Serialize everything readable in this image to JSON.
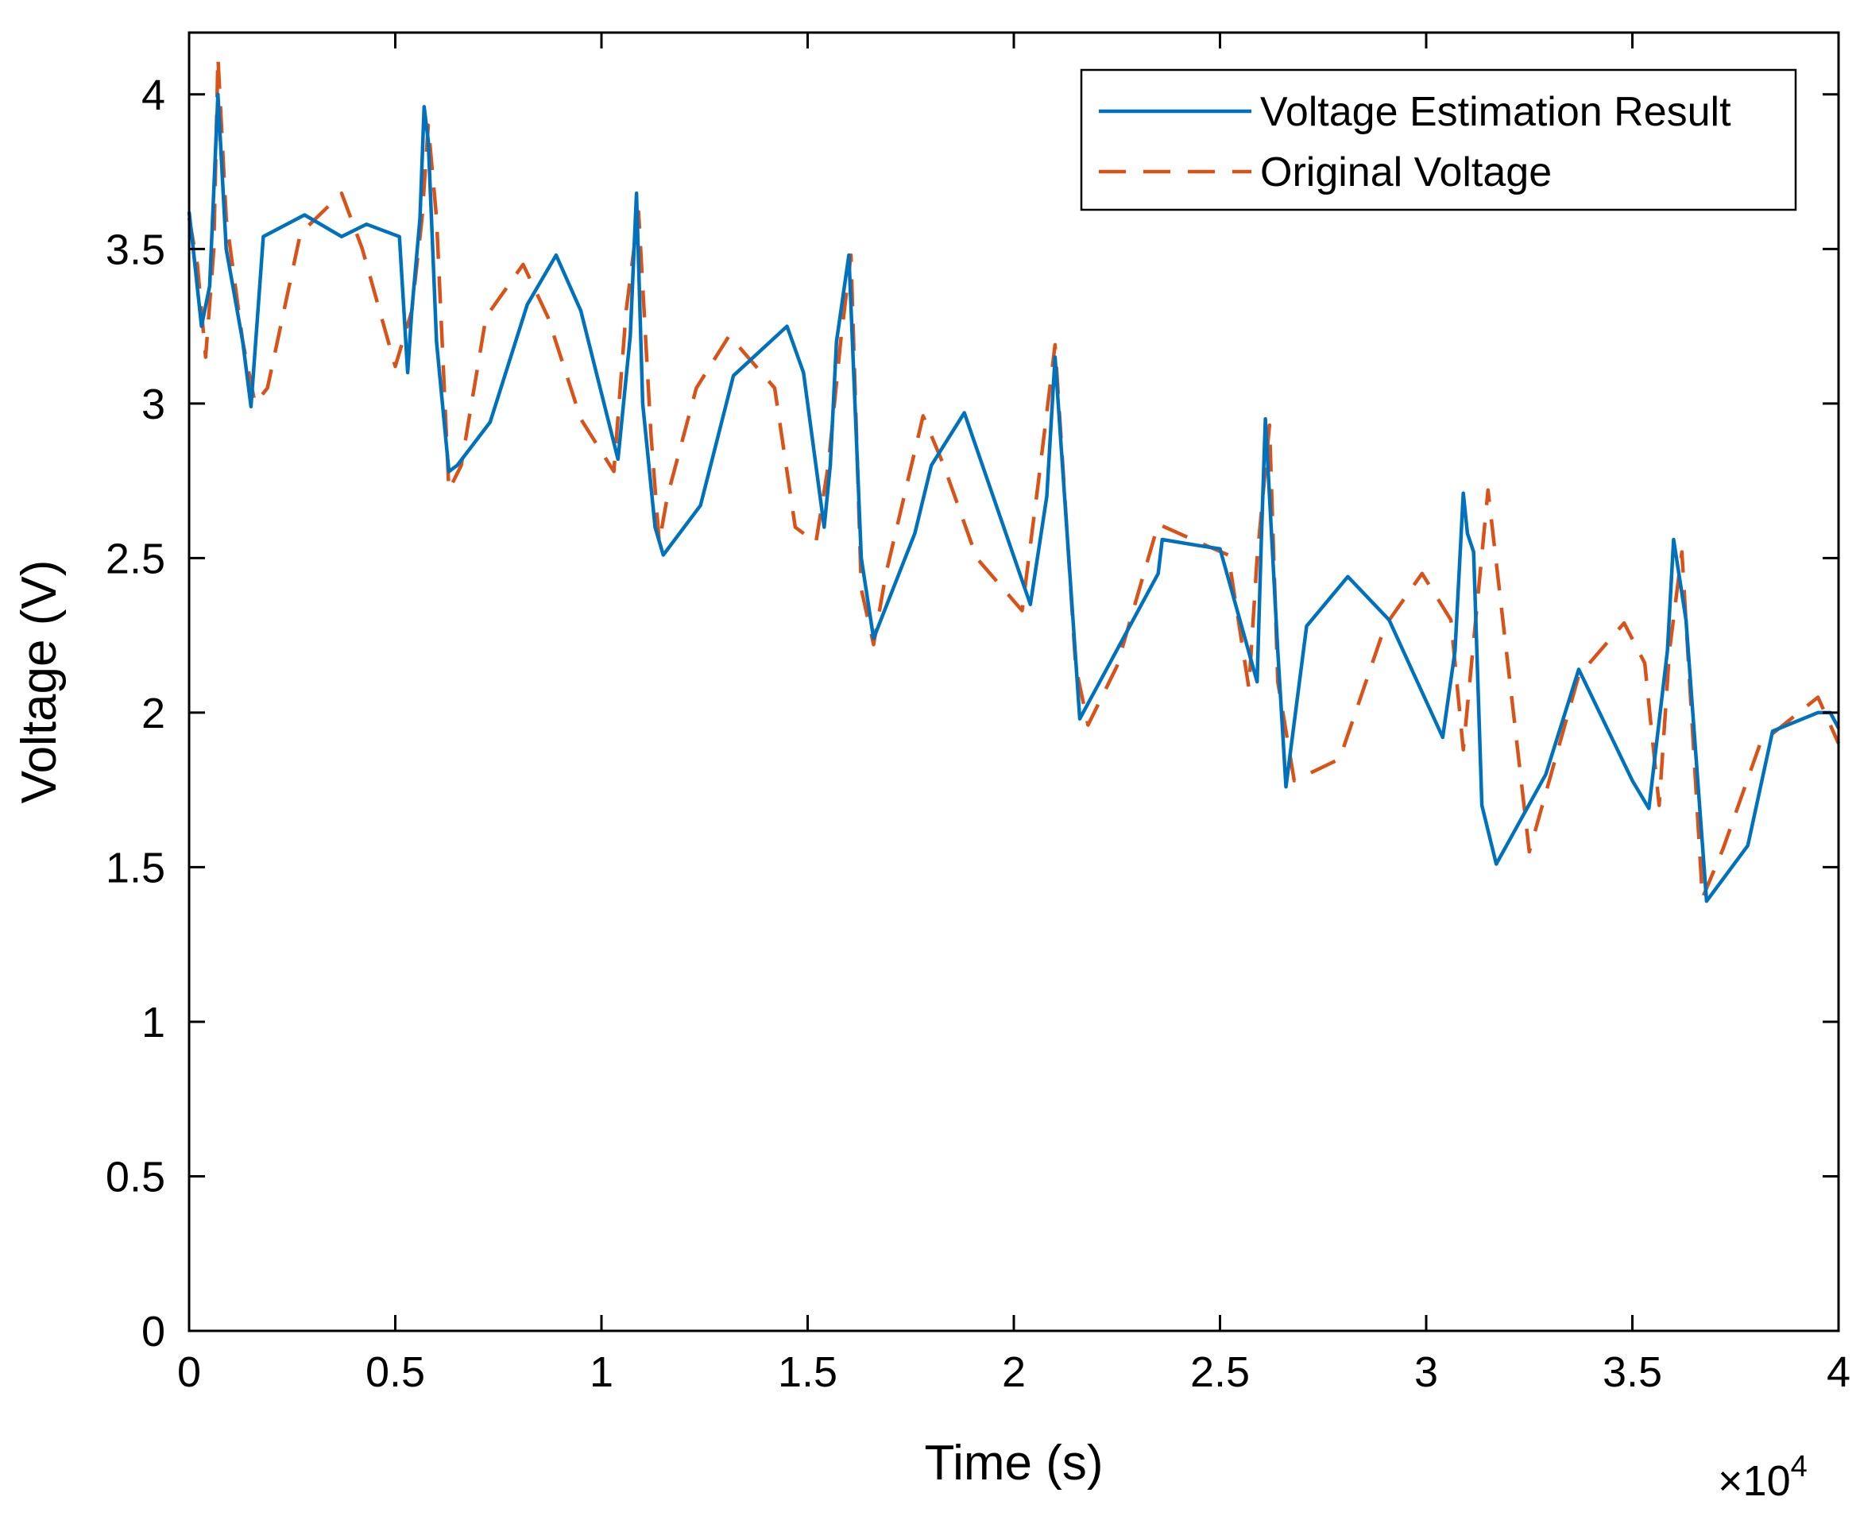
{
  "chart_data": {
    "type": "line",
    "title": "",
    "xlabel": "Time (s)",
    "ylabel": "Voltage (V)",
    "x_multiplier_label": "×10",
    "x_multiplier_exponent": "4",
    "xlim": [
      0,
      4
    ],
    "ylim": [
      0,
      4.2
    ],
    "xticks": [
      0,
      0.5,
      1,
      1.5,
      2,
      2.5,
      3,
      3.5,
      4
    ],
    "xtick_labels": [
      "0",
      "0.5",
      "1",
      "1.5",
      "2",
      "2.5",
      "3",
      "3.5",
      "4"
    ],
    "yticks": [
      0,
      0.5,
      1,
      1.5,
      2,
      2.5,
      3,
      3.5,
      4
    ],
    "ytick_labels": [
      "0",
      "0.5",
      "1",
      "1.5",
      "2",
      "2.5",
      "3",
      "3.5",
      "4"
    ],
    "grid": false,
    "legend_position": "top-right",
    "colors": {
      "estimation": "#0072BD",
      "original": "#D95319",
      "axes": "#000000",
      "background": "#ffffff"
    },
    "series": [
      {
        "name": "Voltage Estimation Result",
        "style": "solid",
        "x": [
          0.0,
          0.01,
          0.03,
          0.05,
          0.07,
          0.09,
          0.13,
          0.15,
          0.18,
          0.28,
          0.37,
          0.43,
          0.51,
          0.53,
          0.54,
          0.56,
          0.57,
          0.58,
          0.6,
          0.63,
          0.65,
          0.73,
          0.82,
          0.89,
          0.95,
          1.04,
          1.07,
          1.085,
          1.1,
          1.13,
          1.15,
          1.24,
          1.32,
          1.45,
          1.49,
          1.54,
          1.555,
          1.57,
          1.6,
          1.63,
          1.66,
          1.76,
          1.8,
          1.88,
          2.04,
          2.08,
          2.1,
          2.16,
          2.35,
          2.36,
          2.45,
          2.5,
          2.59,
          2.6,
          2.61,
          2.64,
          2.66,
          2.71,
          2.81,
          2.91,
          3.04,
          3.07,
          3.09,
          3.1,
          3.115,
          3.135,
          3.17,
          3.29,
          3.37,
          3.5,
          3.54,
          3.585,
          3.6,
          3.63,
          3.68,
          3.78,
          3.84,
          3.95,
          3.98,
          4.0
        ],
        "y": [
          3.62,
          3.5,
          3.25,
          3.38,
          4.0,
          3.5,
          3.2,
          2.99,
          3.54,
          3.61,
          3.54,
          3.58,
          3.54,
          3.1,
          3.3,
          3.6,
          3.96,
          3.85,
          3.2,
          2.78,
          2.8,
          2.94,
          3.32,
          3.48,
          3.3,
          2.82,
          3.22,
          3.68,
          3.0,
          2.6,
          2.51,
          2.67,
          3.09,
          3.25,
          3.1,
          2.6,
          2.8,
          3.2,
          3.48,
          2.5,
          2.24,
          2.58,
          2.8,
          2.97,
          2.35,
          2.7,
          3.15,
          1.98,
          2.45,
          2.56,
          2.54,
          2.53,
          2.1,
          2.55,
          2.95,
          2.2,
          1.76,
          2.28,
          2.44,
          2.3,
          1.92,
          2.2,
          2.71,
          2.58,
          2.52,
          1.7,
          1.51,
          1.8,
          2.14,
          1.78,
          1.69,
          2.2,
          2.56,
          2.3,
          1.39,
          1.57,
          1.94,
          2.0,
          2.0,
          1.95
        ]
      },
      {
        "name": "Original Voltage",
        "style": "dashed",
        "x": [
          0.0,
          0.02,
          0.04,
          0.06,
          0.07,
          0.09,
          0.13,
          0.16,
          0.19,
          0.27,
          0.37,
          0.42,
          0.5,
          0.54,
          0.565,
          0.58,
          0.6,
          0.63,
          0.66,
          0.72,
          0.81,
          0.87,
          0.95,
          1.03,
          1.06,
          1.09,
          1.12,
          1.14,
          1.16,
          1.23,
          1.31,
          1.42,
          1.47,
          1.52,
          1.55,
          1.58,
          1.605,
          1.63,
          1.66,
          1.69,
          1.78,
          1.83,
          1.91,
          2.02,
          2.06,
          2.1,
          2.15,
          2.18,
          2.25,
          2.35,
          2.45,
          2.52,
          2.57,
          2.59,
          2.62,
          2.64,
          2.68,
          2.79,
          2.9,
          2.99,
          3.06,
          3.09,
          3.12,
          3.15,
          3.25,
          3.37,
          3.48,
          3.53,
          3.565,
          3.59,
          3.62,
          3.67,
          3.72,
          3.81,
          3.95,
          4.0
        ],
        "y": [
          3.6,
          3.45,
          3.15,
          3.5,
          4.12,
          3.6,
          3.2,
          3.0,
          3.05,
          3.55,
          3.68,
          3.5,
          3.12,
          3.3,
          3.6,
          3.9,
          3.6,
          2.72,
          2.8,
          3.28,
          3.45,
          3.28,
          2.95,
          2.78,
          3.3,
          3.62,
          2.9,
          2.55,
          2.7,
          3.05,
          3.22,
          3.05,
          2.6,
          2.55,
          2.8,
          3.2,
          3.48,
          2.4,
          2.22,
          2.45,
          2.96,
          2.8,
          2.5,
          2.33,
          2.75,
          3.19,
          2.15,
          1.96,
          2.15,
          2.61,
          2.55,
          2.51,
          2.08,
          2.5,
          2.93,
          2.1,
          1.78,
          1.85,
          2.28,
          2.45,
          2.3,
          1.88,
          2.3,
          2.72,
          1.55,
          2.12,
          2.29,
          2.16,
          1.7,
          2.2,
          2.52,
          1.4,
          1.56,
          1.9,
          2.05,
          1.9
        ]
      }
    ]
  }
}
